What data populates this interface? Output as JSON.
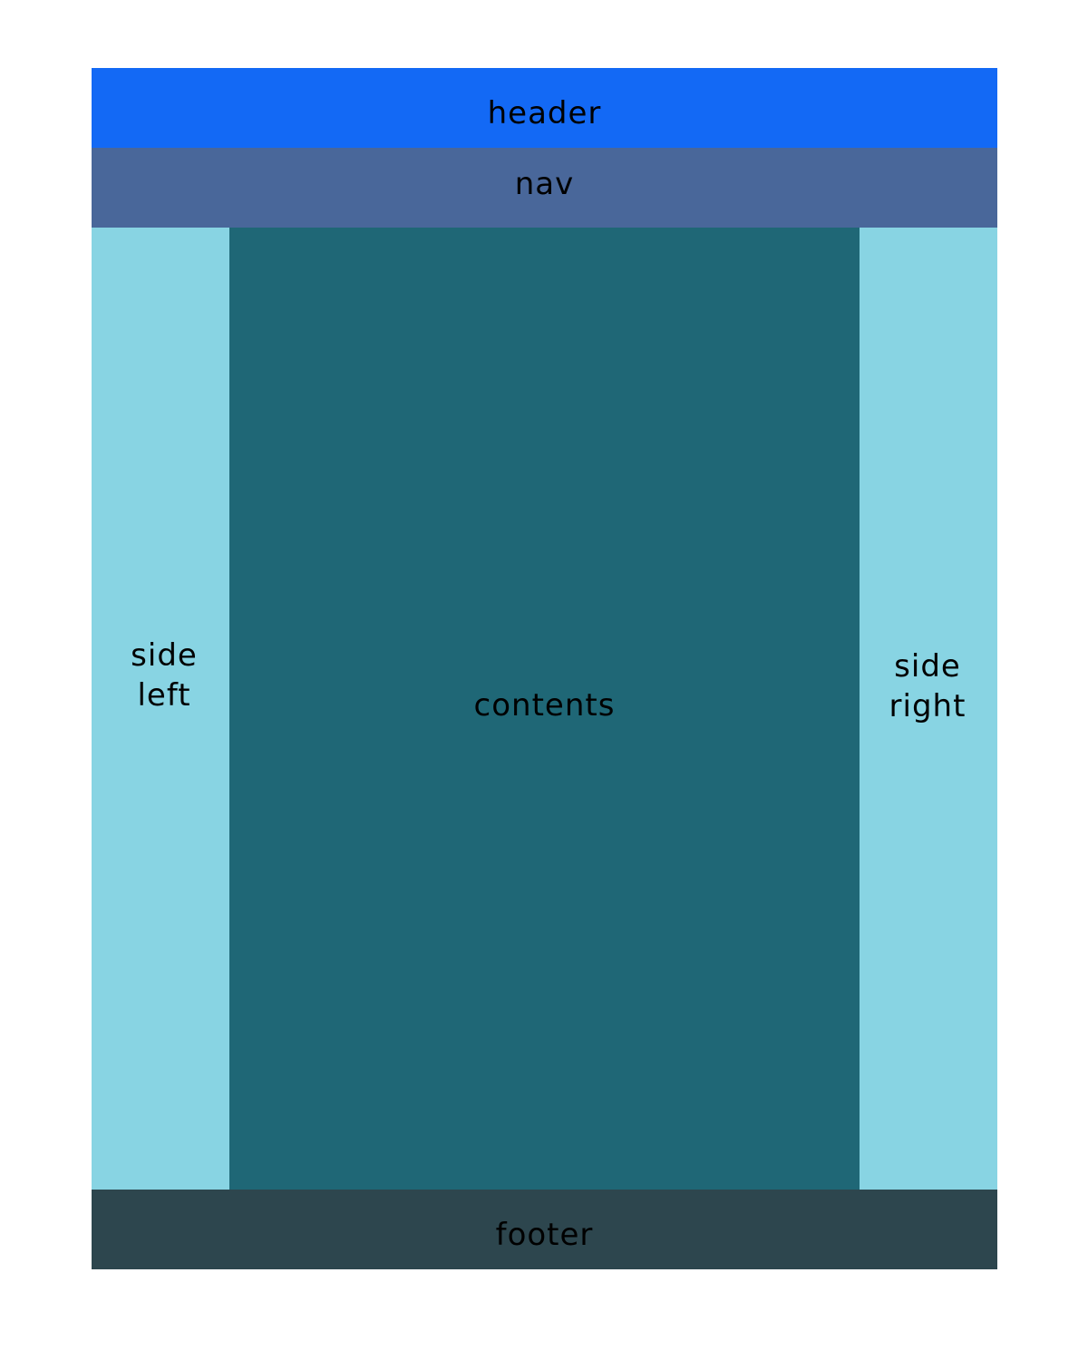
{
  "regions": {
    "header": {
      "label": "header",
      "color": "#1369F5"
    },
    "nav": {
      "label": "nav",
      "color": "#49679A"
    },
    "side_left": {
      "label": "side\nleft",
      "color": "#88D4E3"
    },
    "contents": {
      "label": "contents",
      "color": "#1F6776"
    },
    "side_right": {
      "label": "side\nright",
      "color": "#88D4E3"
    },
    "footer": {
      "label": "footer",
      "color": "#2D464E"
    }
  }
}
